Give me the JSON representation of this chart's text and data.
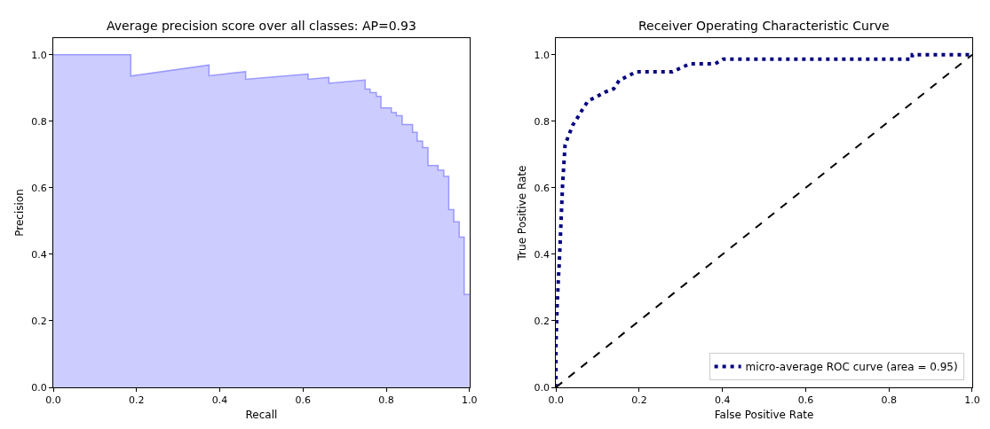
{
  "chart_data": [
    {
      "type": "area",
      "title": "Average precision score over all classes: AP=0.93",
      "xlabel": "Recall",
      "ylabel": "Precision",
      "series": [
        {
          "color": "#9999ff",
          "x": [
            0,
            0.186,
            0.186,
            0.374,
            0.374,
            0.462,
            0.462,
            0.612,
            0.612,
            0.662,
            0.662,
            0.749,
            0.749,
            0.761,
            0.761,
            0.776,
            0.776,
            0.787,
            0.787,
            0.812,
            0.812,
            0.824,
            0.824,
            0.838,
            0.838,
            0.863,
            0.863,
            0.874,
            0.874,
            0.887,
            0.887,
            0.9,
            0.9,
            0.924,
            0.924,
            0.938,
            0.938,
            0.95,
            0.95,
            0.962,
            0.962,
            0.975,
            0.975,
            0.987,
            0.987,
            1.0
          ],
          "values": [
            1.0,
            1.0,
            0.936,
            0.969,
            0.937,
            0.949,
            0.926,
            0.942,
            0.926,
            0.932,
            0.914,
            0.924,
            0.897,
            0.897,
            0.886,
            0.886,
            0.875,
            0.875,
            0.84,
            0.84,
            0.826,
            0.826,
            0.817,
            0.817,
            0.79,
            0.79,
            0.767,
            0.767,
            0.74,
            0.74,
            0.721,
            0.721,
            0.667,
            0.667,
            0.653,
            0.653,
            0.634,
            0.634,
            0.534,
            0.534,
            0.498,
            0.498,
            0.452,
            0.452,
            0.279,
            0.279
          ]
        }
      ],
      "xlim": [
        0,
        1.0
      ],
      "ylim": [
        0,
        1.05
      ],
      "xticks": [
        {
          "value": 0,
          "label": "0.0"
        },
        {
          "value": 0.2,
          "label": "0.2"
        },
        {
          "value": 0.4,
          "label": "0.4"
        },
        {
          "value": 0.6,
          "label": "0.6"
        },
        {
          "value": 0.8,
          "label": "0.8"
        },
        {
          "value": 1.0,
          "label": "1.0"
        }
      ],
      "yticks": [
        {
          "value": 0,
          "label": "0.0"
        },
        {
          "value": 0.2,
          "label": "0.2"
        },
        {
          "value": 0.4,
          "label": "0.4"
        },
        {
          "value": 0.6,
          "label": "0.6"
        },
        {
          "value": 0.8,
          "label": "0.8"
        },
        {
          "value": 1.0,
          "label": "1.0"
        }
      ],
      "legend": false
    },
    {
      "type": "line",
      "title": "Receiver Operating Characteristic Curve",
      "xlabel": "False Positive Rate",
      "ylabel": "True Positive Rate",
      "series": [
        {
          "name": "micro-average ROC curve (area = 0.95)",
          "color": "#000080",
          "line_style": "dotted",
          "x": [
            0,
            0,
            0.003,
            0.006,
            0.008,
            0.011,
            0.016,
            0.022,
            0.031,
            0.041,
            0.052,
            0.064,
            0.077,
            0.098,
            0.117,
            0.139,
            0.152,
            0.173,
            0.193,
            0.28,
            0.301,
            0.322,
            0.383,
            0.402,
            0.856,
            0.856,
            1.0
          ],
          "values": [
            0,
            0.13,
            0.25,
            0.33,
            0.373,
            0.46,
            0.611,
            0.729,
            0.759,
            0.79,
            0.811,
            0.836,
            0.861,
            0.874,
            0.887,
            0.898,
            0.923,
            0.936,
            0.949,
            0.949,
            0.961,
            0.973,
            0.973,
            0.987,
            0.987,
            1.0,
            1.0
          ]
        },
        {
          "color": "#000000",
          "line_style": "dashed",
          "x": [
            0,
            1.0
          ],
          "values": [
            0,
            1.0
          ]
        }
      ],
      "xlim": [
        0,
        1.0
      ],
      "ylim": [
        0,
        1.05
      ],
      "xticks": [
        {
          "value": 0,
          "label": "0.0"
        },
        {
          "value": 0.2,
          "label": "0.2"
        },
        {
          "value": 0.4,
          "label": "0.4"
        },
        {
          "value": 0.6,
          "label": "0.6"
        },
        {
          "value": 0.8,
          "label": "0.8"
        },
        {
          "value": 1.0,
          "label": "1.0"
        }
      ],
      "yticks": [
        {
          "value": 0,
          "label": "0.0"
        },
        {
          "value": 0.2,
          "label": "0.2"
        },
        {
          "value": 0.4,
          "label": "0.4"
        },
        {
          "value": 0.6,
          "label": "0.6"
        },
        {
          "value": 0.8,
          "label": "0.8"
        },
        {
          "value": 1.0,
          "label": "1.0"
        }
      ],
      "legend": "bottom right"
    }
  ]
}
